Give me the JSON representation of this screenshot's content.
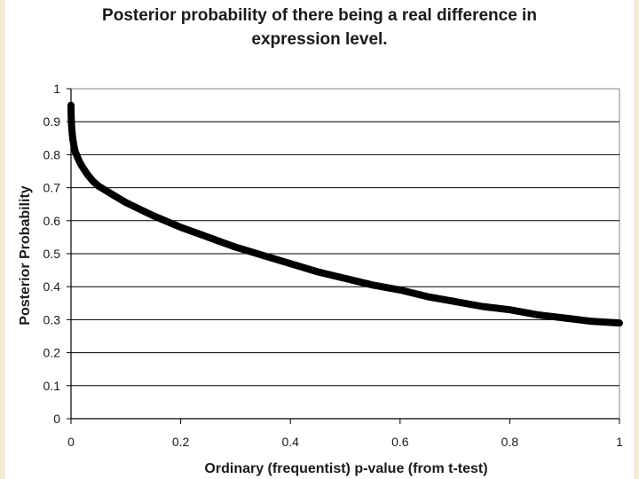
{
  "chart_data": {
    "type": "scatter",
    "title_lines": [
      "Posterior probability of there being a real difference in",
      "expression level."
    ],
    "xlabel": "Ordinary (frequentist) p-value (from t-test)",
    "ylabel": "Posterior Probability",
    "xlim": [
      0,
      1
    ],
    "ylim": [
      0,
      1
    ],
    "xticks": [
      "0",
      "0.2",
      "0.4",
      "0.6",
      "0.8",
      "1"
    ],
    "yticks": [
      "0",
      "0.1",
      "0.2",
      "0.3",
      "0.4",
      "0.5",
      "0.6",
      "0.7",
      "0.8",
      "0.9",
      "1"
    ],
    "grid": "horizontal",
    "legend": "none",
    "marker_color": "#000000",
    "series": [
      {
        "x": [
          0.0,
          0.0002,
          0.0005,
          0.001,
          0.002,
          0.003,
          0.005,
          0.0075,
          0.01,
          0.015,
          0.02,
          0.03,
          0.04,
          0.05,
          0.06,
          0.08,
          0.1,
          0.15,
          0.2,
          0.25,
          0.3,
          0.35,
          0.4,
          0.45,
          0.5,
          0.55,
          0.6,
          0.65,
          0.7,
          0.75,
          0.8,
          0.85,
          0.9,
          0.95,
          1.0
        ],
        "y": [
          0.95,
          0.93,
          0.91,
          0.89,
          0.87,
          0.85,
          0.83,
          0.81,
          0.8,
          0.78,
          0.765,
          0.74,
          0.72,
          0.705,
          0.695,
          0.675,
          0.655,
          0.615,
          0.58,
          0.55,
          0.52,
          0.495,
          0.47,
          0.445,
          0.425,
          0.405,
          0.39,
          0.37,
          0.355,
          0.34,
          0.33,
          0.315,
          0.305,
          0.295,
          0.29
        ]
      }
    ]
  }
}
